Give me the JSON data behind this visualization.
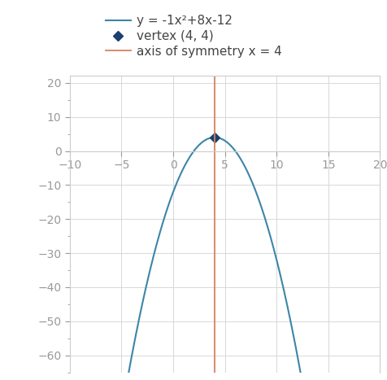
{
  "equation": "y = -1x²+8x-12",
  "vertex": [
    4,
    4
  ],
  "vertex_label": "vertex (4, 4)",
  "axis_of_symmetry": 4,
  "axis_label": "axis of symmetry x = 4",
  "a": -1,
  "b": 8,
  "c": -12,
  "xlim": [
    -10,
    20
  ],
  "ylim": [
    -65,
    22
  ],
  "xticks": [
    -10,
    -5,
    0,
    5,
    10,
    15,
    20
  ],
  "yticks": [
    -60,
    -50,
    -40,
    -30,
    -20,
    -10,
    0,
    10,
    20
  ],
  "parabola_color": "#3d85a8",
  "vertex_color": "#1b3f6e",
  "axis_color": "#d4845a",
  "background_color": "#ffffff",
  "grid_color": "#d8d8d8",
  "spine_color": "#cccccc",
  "tick_color": "#999999",
  "legend_fontsize": 11,
  "tick_fontsize": 10,
  "figsize": [
    4.77,
    4.67
  ],
  "dpi": 100
}
